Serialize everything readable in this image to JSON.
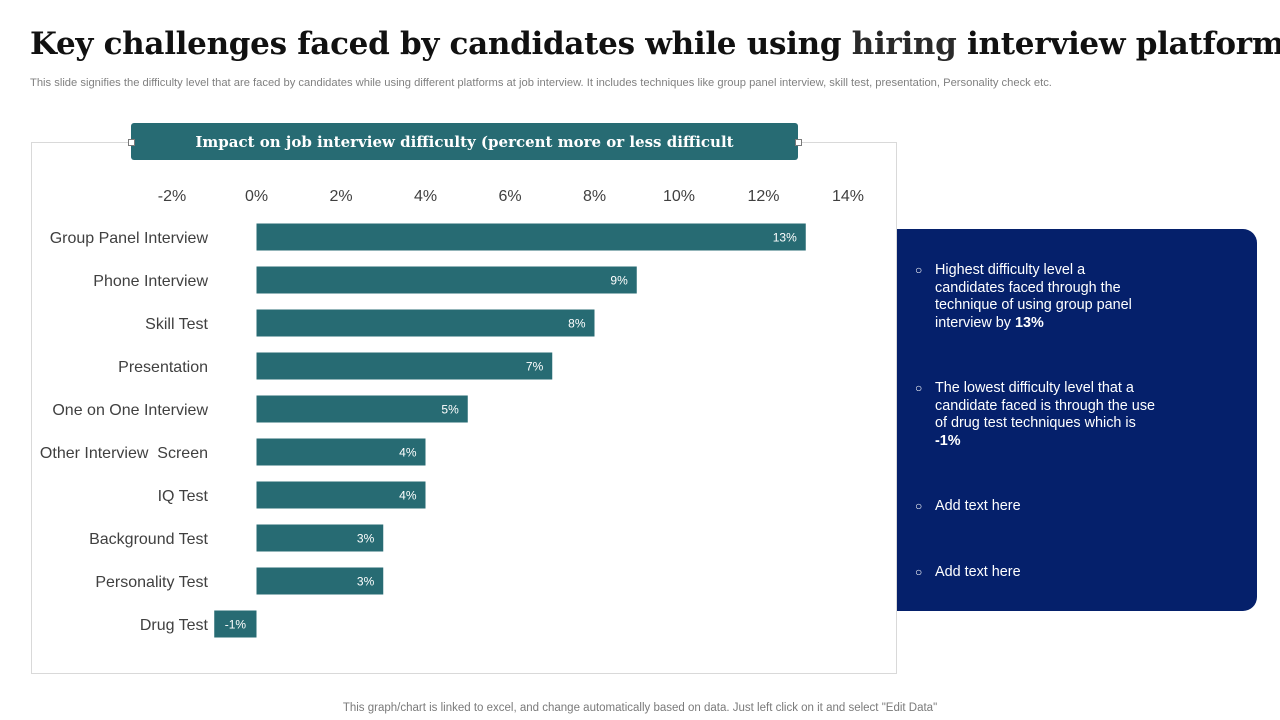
{
  "page": {
    "title_part1": "Key challenges faced by candidates while using ",
    "title_accent": "hiring",
    "title_part2": " interview platforms",
    "subtitle": "This slide signifies the difficulty level that are faced by candidates while using different platforms at job interview. It includes techniques like group panel interview, skill test, presentation, Personality check etc.",
    "footer": "This graph/chart is linked to excel, and change automatically based on data. Just left click on it and select \"Edit Data\""
  },
  "colors": {
    "bar": "#276b73",
    "panel": "#05206b",
    "axis_text": "#404040",
    "label_text": "#404040",
    "bar_label": "#ffffff"
  },
  "chart_data": {
    "type": "bar",
    "orientation": "horizontal",
    "title": "Impact on job interview difficulty (percent more or less difficult",
    "categories": [
      "Group Panel Interview",
      "Phone Interview",
      "Skill Test",
      "Presentation",
      "One on One Interview",
      "Other Interview  Screen",
      "IQ Test",
      "Background Test",
      "Personality Test",
      "Drug Test"
    ],
    "values": [
      13,
      9,
      8,
      7,
      5,
      4,
      4,
      3,
      3,
      -1
    ],
    "data_labels": [
      "13%",
      "9%",
      "8%",
      "7%",
      "5%",
      "4%",
      "4%",
      "3%",
      "3%",
      "-1%"
    ],
    "xlim": [
      -2,
      14
    ],
    "ticks": [
      -2,
      0,
      2,
      4,
      6,
      8,
      10,
      12,
      14
    ],
    "tick_labels": [
      "-2%",
      "0%",
      "2%",
      "4%",
      "6%",
      "8%",
      "10%",
      "12%",
      "14%"
    ],
    "axis_position": "top",
    "xlabel": "",
    "ylabel": "",
    "grid": false,
    "legend": "none"
  },
  "panel": {
    "items": [
      {
        "text": "Highest difficulty level a candidates faced through the technique of using group panel interview by ",
        "bold": "13%"
      },
      {
        "text": "The lowest difficulty level that a candidate faced is through the use of drug test techniques which is ",
        "bold": "-1%"
      },
      {
        "text": "Add text here",
        "bold": ""
      },
      {
        "text": "Add text here",
        "bold": ""
      }
    ]
  }
}
